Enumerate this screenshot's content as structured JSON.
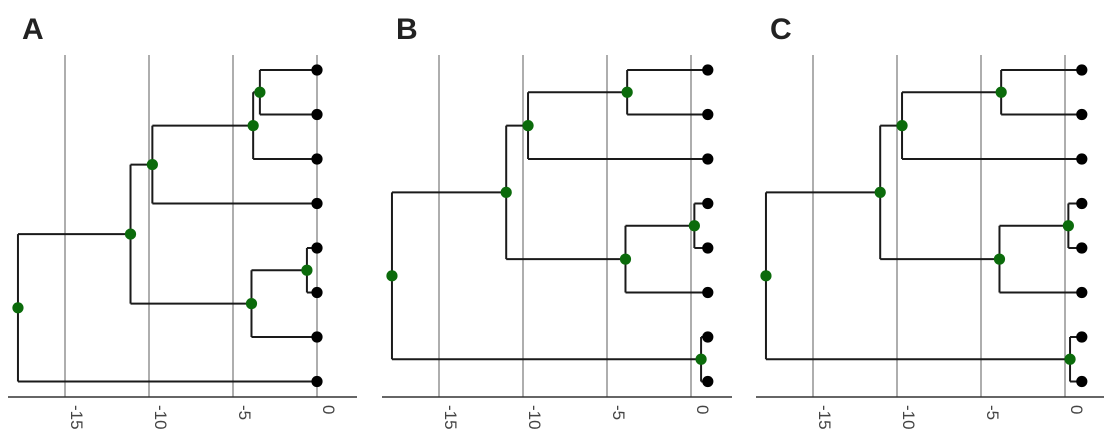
{
  "panels": [
    {
      "label": "A",
      "x_ticks": [
        -15,
        -10,
        -5,
        0
      ],
      "tree": {
        "age": -17.8,
        "children": [
          {
            "age": -11.1,
            "children": [
              {
                "age": -9.8,
                "children": [
                  {
                    "age": -3.8,
                    "children": [
                      {
                        "age": -3.4,
                        "children": [
                          {
                            "age": 0
                          },
                          {
                            "age": 0
                          }
                        ]
                      },
                      {
                        "age": 0
                      }
                    ]
                  },
                  {
                    "age": 0
                  }
                ]
              },
              {
                "age": -3.9,
                "children": [
                  {
                    "age": -0.6,
                    "children": [
                      {
                        "age": 0
                      },
                      {
                        "age": 0
                      }
                    ]
                  },
                  {
                    "age": 0
                  }
                ]
              }
            ]
          },
          {
            "age": 0
          }
        ]
      }
    },
    {
      "label": "B",
      "x_ticks": [
        -15,
        -10,
        -5,
        0
      ],
      "tree": {
        "age": -17.8,
        "children": [
          {
            "age": -11.0,
            "children": [
              {
                "age": -9.7,
                "children": [
                  {
                    "age": -3.8,
                    "children": [
                      {
                        "age": 1
                      },
                      {
                        "age": 1
                      }
                    ]
                  },
                  {
                    "age": 1
                  }
                ]
              },
              {
                "age": -3.9,
                "children": [
                  {
                    "age": 0.2,
                    "children": [
                      {
                        "age": 1
                      },
                      {
                        "age": 1
                      }
                    ]
                  },
                  {
                    "age": 1
                  }
                ]
              }
            ]
          },
          {
            "age": 0.6,
            "children": [
              {
                "age": 1
              },
              {
                "age": 1
              }
            ]
          }
        ]
      }
    },
    {
      "label": "C",
      "x_ticks": [
        -15,
        -10,
        -5,
        0
      ],
      "tree": {
        "age": -17.8,
        "children": [
          {
            "age": -11.0,
            "children": [
              {
                "age": -9.7,
                "children": [
                  {
                    "age": -3.8,
                    "children": [
                      {
                        "age": 1
                      },
                      {
                        "age": 1
                      }
                    ]
                  },
                  {
                    "age": 1
                  }
                ]
              },
              {
                "age": -3.9,
                "children": [
                  {
                    "age": 0.2,
                    "children": [
                      {
                        "age": 1
                      },
                      {
                        "age": 1
                      }
                    ]
                  },
                  {
                    "age": 1
                  }
                ]
              }
            ]
          },
          {
            "age": 0.3,
            "children": [
              {
                "age": 1
              },
              {
                "age": 1
              }
            ]
          }
        ]
      }
    }
  ],
  "colors": {
    "node": "#0b6b0b",
    "tip": "#000000",
    "branch": "#1a1a1a",
    "grid": "#999999"
  }
}
